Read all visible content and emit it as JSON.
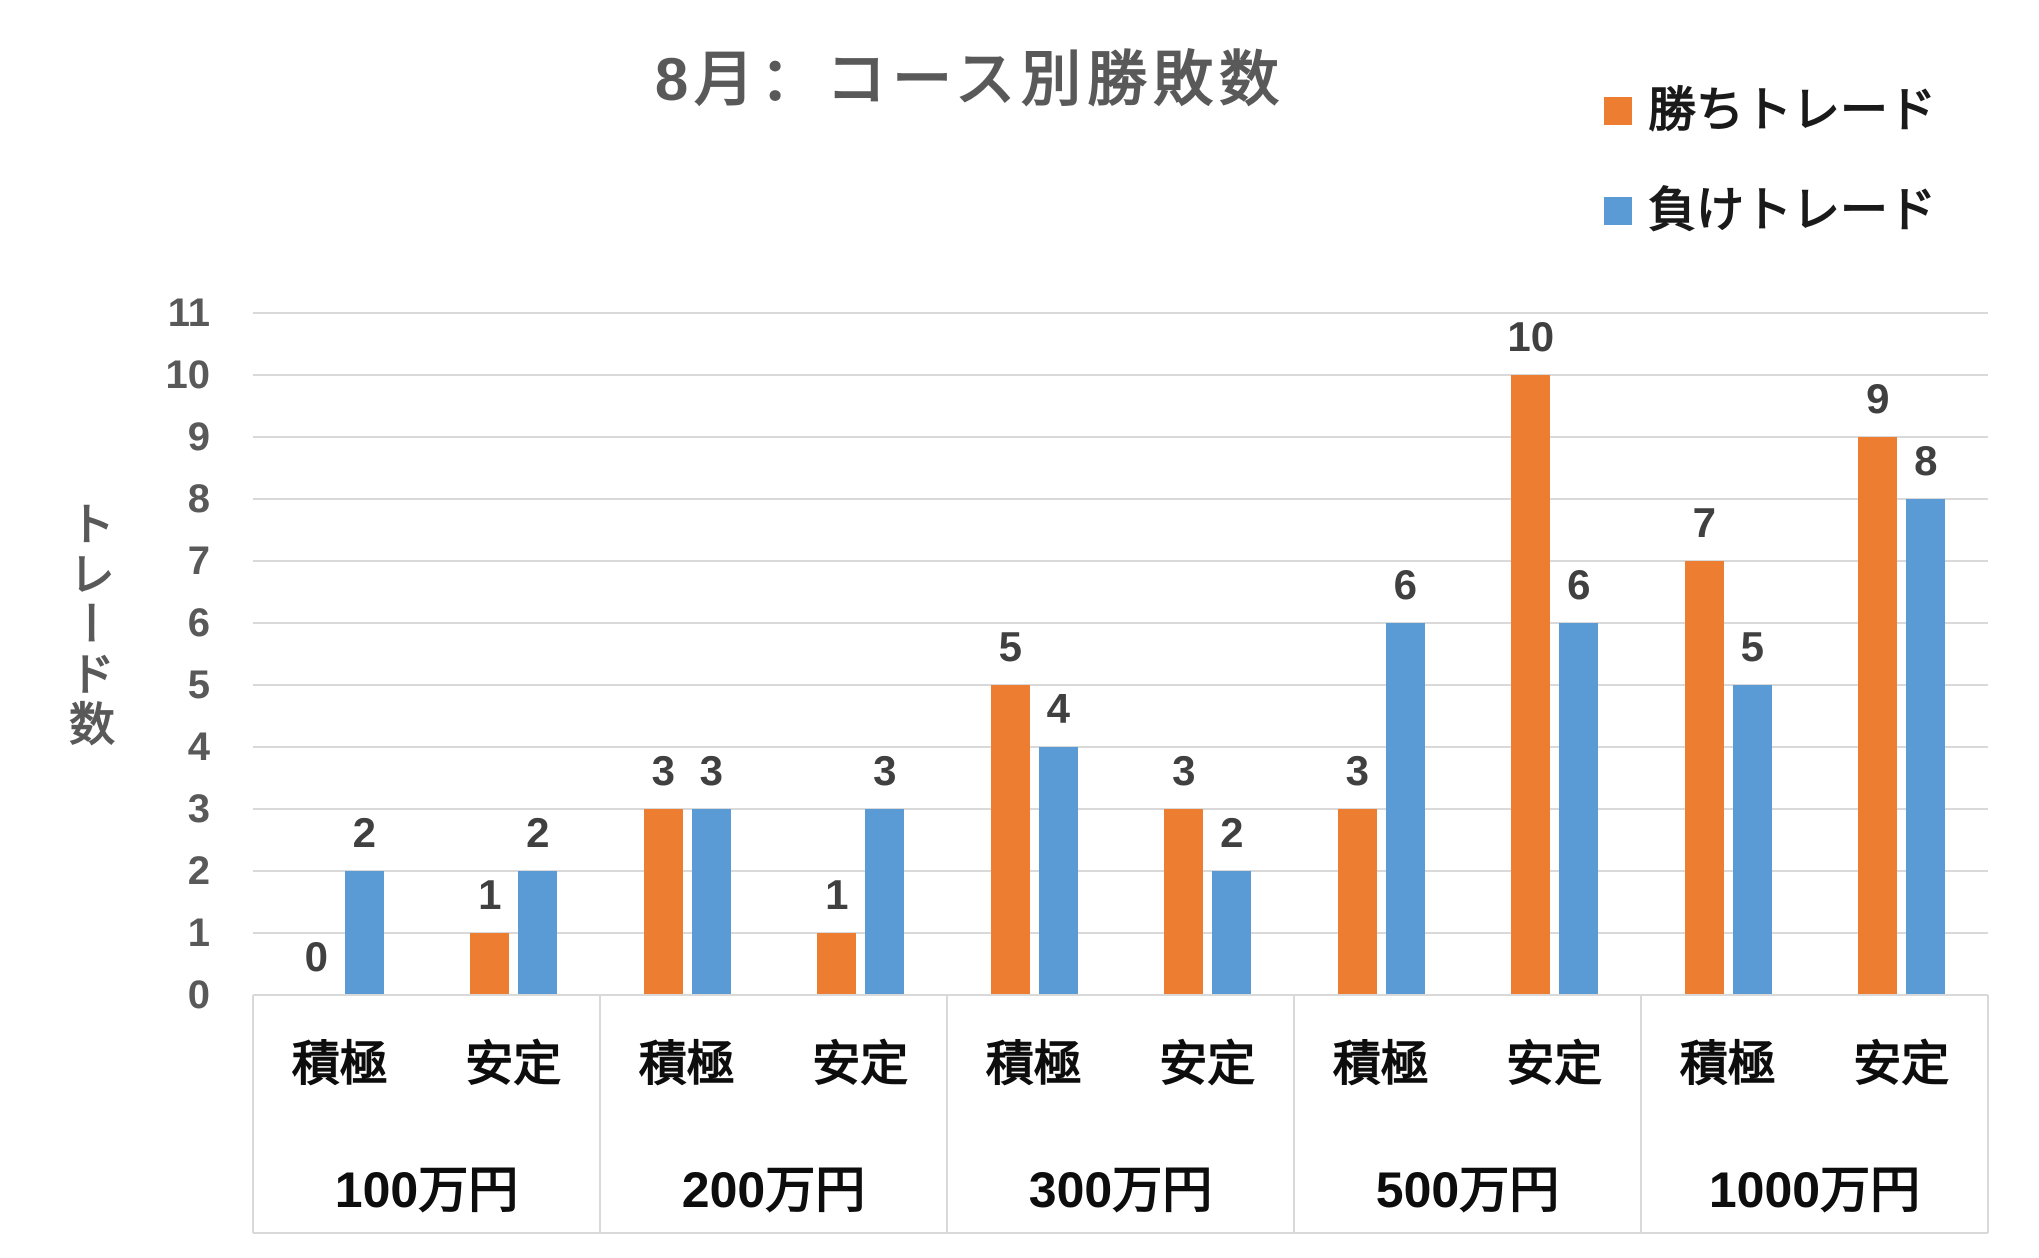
{
  "title": {
    "text": "8月：コース別勝敗数"
  },
  "legend": {
    "items": [
      {
        "label": "勝ちトレード",
        "color": "#ED7D31"
      },
      {
        "label": "負けトレード",
        "color": "#5B9BD5"
      }
    ]
  },
  "y_axis": {
    "title": "トレード数",
    "tick_labels": [
      "0",
      "1",
      "2",
      "3",
      "4",
      "5",
      "6",
      "7",
      "8",
      "9",
      "10",
      "11"
    ],
    "min": 0,
    "max": 11
  },
  "x_axis": {
    "groups": [
      "100万円",
      "200万円",
      "300万円",
      "500万円",
      "1000万円"
    ],
    "subcategories": [
      "積極",
      "安定"
    ]
  },
  "colors": {
    "win": "#ED7D31",
    "loss": "#5B9BD5",
    "gridline": "#D9D9D9",
    "axis_line": "#D9D9D9",
    "tick_text": "#595959",
    "title_text": "#595959",
    "y_title_text": "#595959",
    "value_label_text": "#404040",
    "category_text": "#0D0D0D",
    "legend_text": "#1A1A1A",
    "background": "#FFFFFF"
  },
  "chart_data": {
    "type": "bar",
    "title": "8月：コース別勝敗数",
    "ylabel": "トレード数",
    "ylim": [
      0,
      11
    ],
    "grid": true,
    "legend_position": "top-right",
    "groups": [
      "100万円",
      "200万円",
      "300万円",
      "500万円",
      "1000万円"
    ],
    "subcategories": [
      "積極",
      "安定"
    ],
    "slots": [
      "100万円 積極",
      "100万円 安定",
      "200万円 積極",
      "200万円 安定",
      "300万円 積極",
      "300万円 安定",
      "500万円 積極",
      "500万円 安定",
      "1000万円 積極",
      "1000万円 安定"
    ],
    "series": [
      {
        "name": "勝ちトレード",
        "color": "#ED7D31",
        "values": [
          0,
          1,
          3,
          1,
          5,
          3,
          3,
          10,
          7,
          9
        ]
      },
      {
        "name": "負けトレード",
        "color": "#5B9BD5",
        "values": [
          2,
          2,
          3,
          3,
          4,
          2,
          6,
          6,
          5,
          8
        ]
      }
    ],
    "value_labels_shown": true
  }
}
